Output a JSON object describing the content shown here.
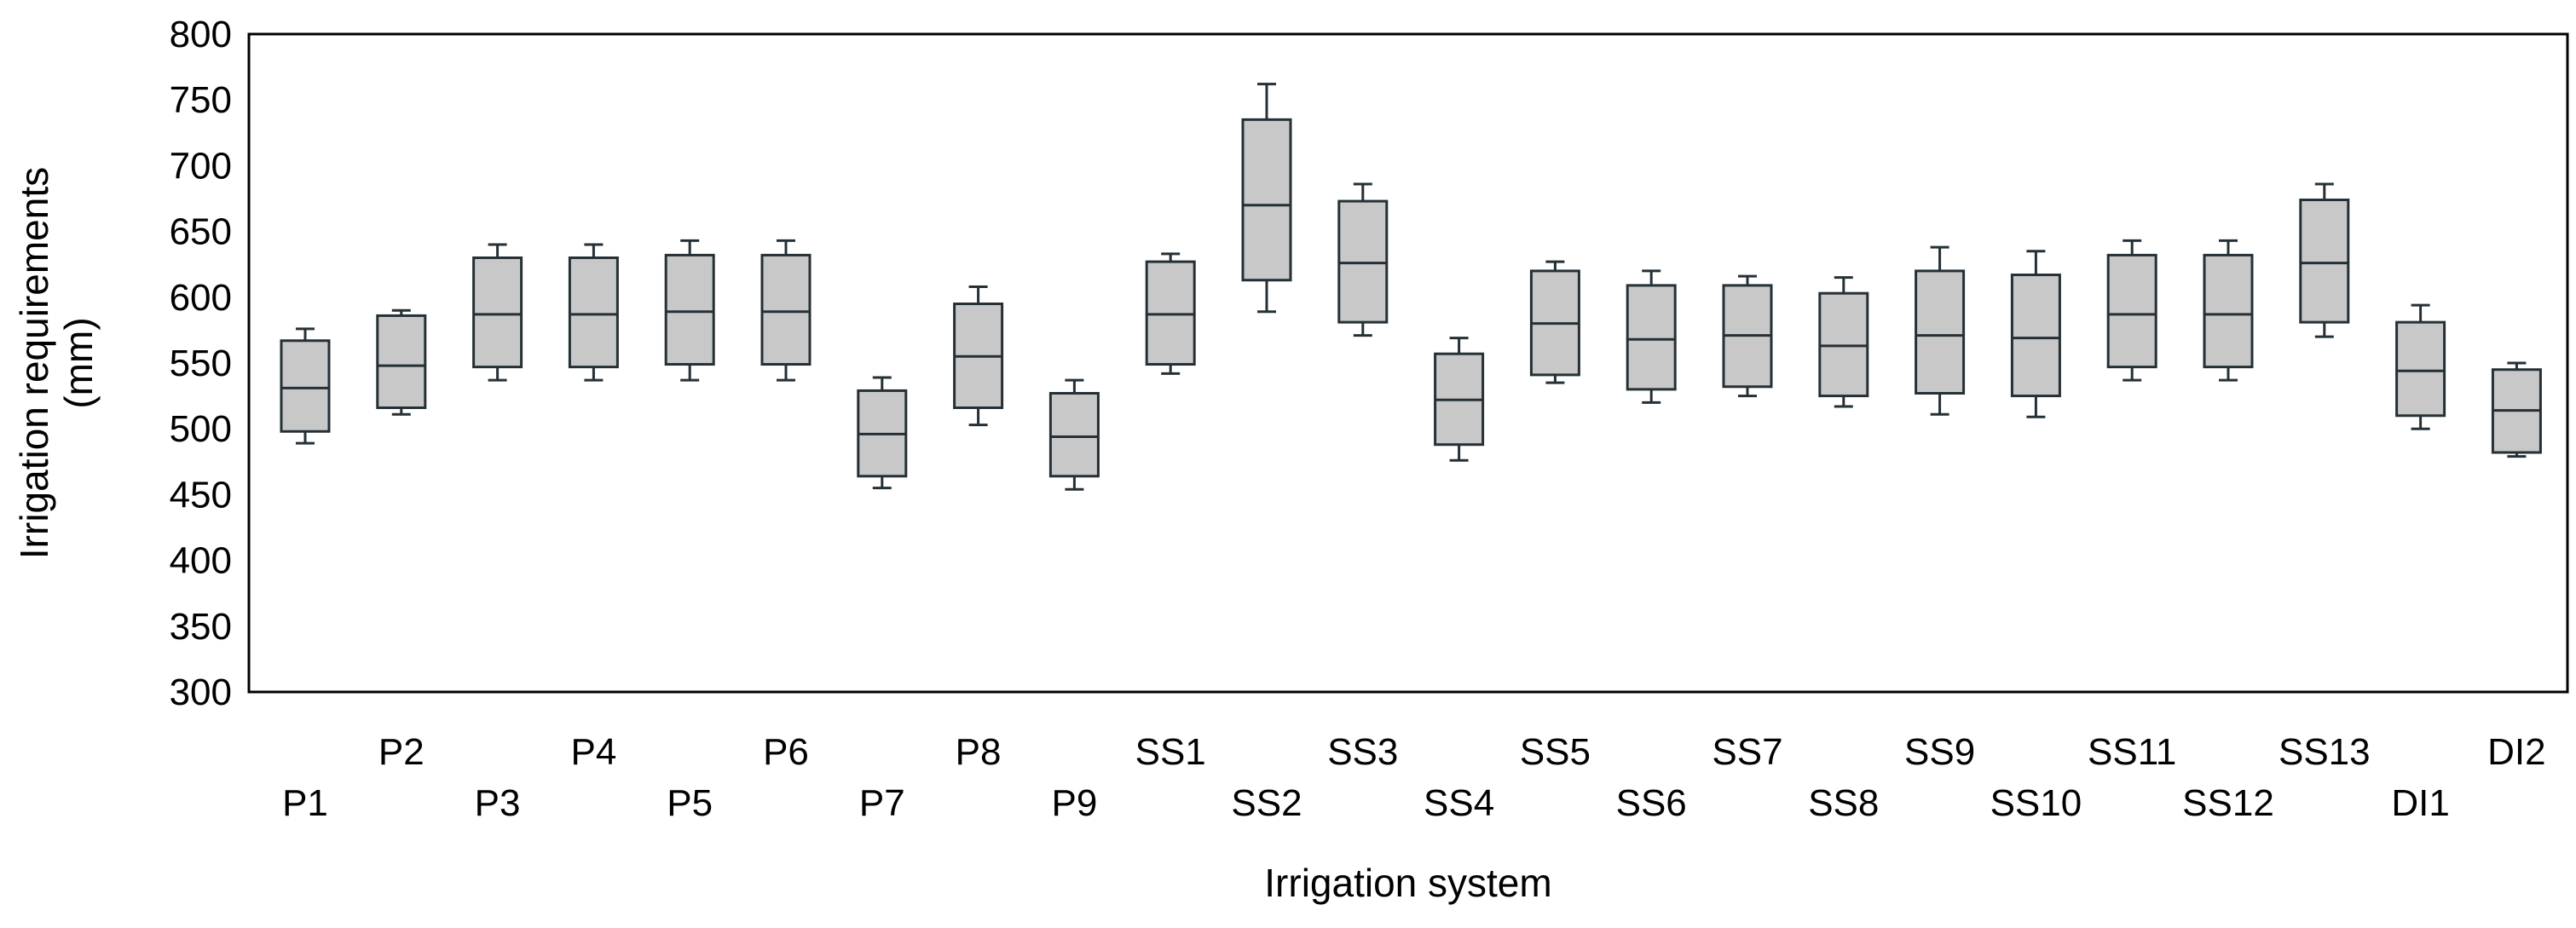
{
  "chart_data": {
    "type": "box",
    "title": "",
    "xlabel": "Irrigation system",
    "ylabel_line1": "Irrigation requirements",
    "ylabel_line2": "(mm)",
    "ylim": [
      300,
      800
    ],
    "yticks": [
      300,
      350,
      400,
      450,
      500,
      550,
      600,
      650,
      700,
      750,
      800
    ],
    "categories": [
      "P1",
      "P2",
      "P3",
      "P4",
      "P5",
      "P6",
      "P7",
      "P8",
      "P9",
      "SS1",
      "SS2",
      "SS3",
      "SS4",
      "SS5",
      "SS6",
      "SS7",
      "SS8",
      "SS9",
      "SS10",
      "SS11",
      "SS12",
      "SS13",
      "DI1",
      "DI2"
    ],
    "series": [
      {
        "name": "P1",
        "min": 489,
        "q1": 498,
        "median": 531,
        "q3": 567,
        "max": 576
      },
      {
        "name": "P2",
        "min": 511,
        "q1": 516,
        "median": 548,
        "q3": 586,
        "max": 590
      },
      {
        "name": "P3",
        "min": 537,
        "q1": 547,
        "median": 587,
        "q3": 630,
        "max": 640
      },
      {
        "name": "P4",
        "min": 537,
        "q1": 547,
        "median": 587,
        "q3": 630,
        "max": 640
      },
      {
        "name": "P5",
        "min": 537,
        "q1": 549,
        "median": 589,
        "q3": 632,
        "max": 643
      },
      {
        "name": "P6",
        "min": 537,
        "q1": 549,
        "median": 589,
        "q3": 632,
        "max": 643
      },
      {
        "name": "P7",
        "min": 455,
        "q1": 464,
        "median": 496,
        "q3": 529,
        "max": 539
      },
      {
        "name": "P8",
        "min": 503,
        "q1": 516,
        "median": 555,
        "q3": 595,
        "max": 608
      },
      {
        "name": "P9",
        "min": 454,
        "q1": 464,
        "median": 494,
        "q3": 527,
        "max": 537
      },
      {
        "name": "SS1",
        "min": 542,
        "q1": 549,
        "median": 587,
        "q3": 627,
        "max": 633
      },
      {
        "name": "SS2",
        "min": 589,
        "q1": 613,
        "median": 670,
        "q3": 735,
        "max": 762
      },
      {
        "name": "SS3",
        "min": 571,
        "q1": 581,
        "median": 626,
        "q3": 673,
        "max": 686
      },
      {
        "name": "SS4",
        "min": 476,
        "q1": 488,
        "median": 522,
        "q3": 557,
        "max": 569
      },
      {
        "name": "SS5",
        "min": 535,
        "q1": 541,
        "median": 580,
        "q3": 620,
        "max": 627
      },
      {
        "name": "SS6",
        "min": 520,
        "q1": 530,
        "median": 568,
        "q3": 609,
        "max": 620
      },
      {
        "name": "SS7",
        "min": 525,
        "q1": 532,
        "median": 571,
        "q3": 609,
        "max": 616
      },
      {
        "name": "SS8",
        "min": 517,
        "q1": 525,
        "median": 563,
        "q3": 603,
        "max": 615
      },
      {
        "name": "SS9",
        "min": 511,
        "q1": 527,
        "median": 571,
        "q3": 620,
        "max": 638
      },
      {
        "name": "SS10",
        "min": 509,
        "q1": 525,
        "median": 569,
        "q3": 617,
        "max": 635
      },
      {
        "name": "SS11",
        "min": 537,
        "q1": 547,
        "median": 587,
        "q3": 632,
        "max": 643
      },
      {
        "name": "SS12",
        "min": 537,
        "q1": 547,
        "median": 587,
        "q3": 632,
        "max": 643
      },
      {
        "name": "SS13",
        "min": 570,
        "q1": 581,
        "median": 626,
        "q3": 674,
        "max": 686
      },
      {
        "name": "DI1",
        "min": 500,
        "q1": 510,
        "median": 544,
        "q3": 581,
        "max": 594
      },
      {
        "name": "DI2",
        "min": 479,
        "q1": 482,
        "median": 514,
        "q3": 545,
        "max": 550
      }
    ]
  }
}
